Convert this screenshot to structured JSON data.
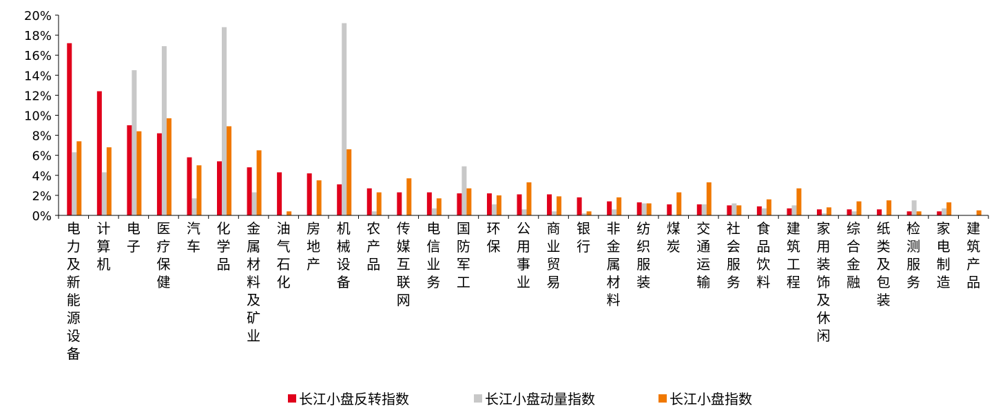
{
  "chart_data": {
    "type": "bar",
    "title": "",
    "xlabel": "",
    "ylabel": "",
    "ylim": [
      0,
      20
    ],
    "yticks": [
      "0%",
      "2%",
      "4%",
      "6%",
      "8%",
      "10%",
      "12%",
      "14%",
      "16%",
      "18%",
      "20%"
    ],
    "grid": false,
    "legend_position": "bottom",
    "categories": [
      "电力及新能源设备",
      "计算机",
      "电子",
      "医疗保健",
      "汽车",
      "化学品",
      "金属材料及矿业",
      "油气石化",
      "房地产",
      "机械设备",
      "农产品",
      "传媒互联网",
      "电信业务",
      "国防军工",
      "环保",
      "公用事业",
      "商业贸易",
      "银行",
      "非金属材料",
      "纺织服装",
      "煤炭",
      "交通运输",
      "社会服务",
      "食品饮料",
      "建筑工程",
      "家用装饰及休闲",
      "综合金融",
      "纸类及包装",
      "检测服务",
      "家电制造",
      "建筑产品"
    ],
    "series": [
      {
        "name": "长江小盘反转指数",
        "color": "#e0001b",
        "values": [
          17.2,
          12.4,
          9.0,
          8.2,
          5.8,
          5.4,
          4.8,
          4.3,
          4.2,
          3.1,
          2.7,
          2.3,
          2.3,
          2.2,
          2.2,
          2.1,
          2.1,
          1.8,
          1.4,
          1.3,
          1.1,
          1.1,
          1.0,
          0.9,
          0.7,
          0.6,
          0.6,
          0.6,
          0.4,
          0.4,
          0.0
        ]
      },
      {
        "name": "长江小盘动量指数",
        "color": "#c8c8c8",
        "values": [
          6.3,
          4.3,
          14.5,
          16.9,
          1.7,
          18.8,
          2.3,
          0.0,
          0.0,
          19.2,
          0.4,
          0.0,
          0.7,
          4.9,
          1.1,
          0.6,
          0.4,
          0.2,
          0.6,
          1.2,
          0.0,
          1.1,
          1.2,
          0.7,
          1.0,
          0.2,
          0.4,
          0.0,
          1.5,
          0.7,
          0.0
        ]
      },
      {
        "name": "长江小盘指数",
        "color": "#f07800",
        "values": [
          7.4,
          6.8,
          8.4,
          9.7,
          5.0,
          8.9,
          6.5,
          0.4,
          3.5,
          6.6,
          2.3,
          3.7,
          1.7,
          2.7,
          2.0,
          3.3,
          1.9,
          0.4,
          1.8,
          1.2,
          2.3,
          3.3,
          1.0,
          1.6,
          2.7,
          0.8,
          1.4,
          1.5,
          0.4,
          1.3,
          0.5
        ]
      }
    ]
  }
}
